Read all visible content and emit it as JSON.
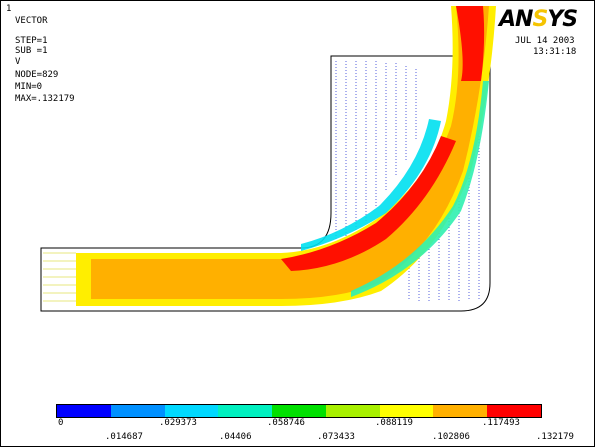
{
  "window_number": "1",
  "info": {
    "type": "VECTOR",
    "step": "STEP=1",
    "sub": "SUB =1",
    "var": "V",
    "node": "NODE=829",
    "min": "MIN=0",
    "max": "MAX=.132179"
  },
  "brand": {
    "part1": "AN",
    "part2": "S",
    "part3": "YS"
  },
  "date": "JUL 14 2003",
  "time": "13:31:18",
  "legend": {
    "colors": [
      "#0000ff",
      "#0090ff",
      "#00d8ff",
      "#00f0c0",
      "#00e000",
      "#a8f000",
      "#ffff00",
      "#ffb000",
      "#ff0000"
    ],
    "top_labels": [
      "0",
      ".029373",
      ".058746",
      ".088119",
      ".117493"
    ],
    "bottom_labels": [
      ".014687",
      ".04406",
      ".073433",
      ".102806",
      ".132179"
    ]
  }
}
